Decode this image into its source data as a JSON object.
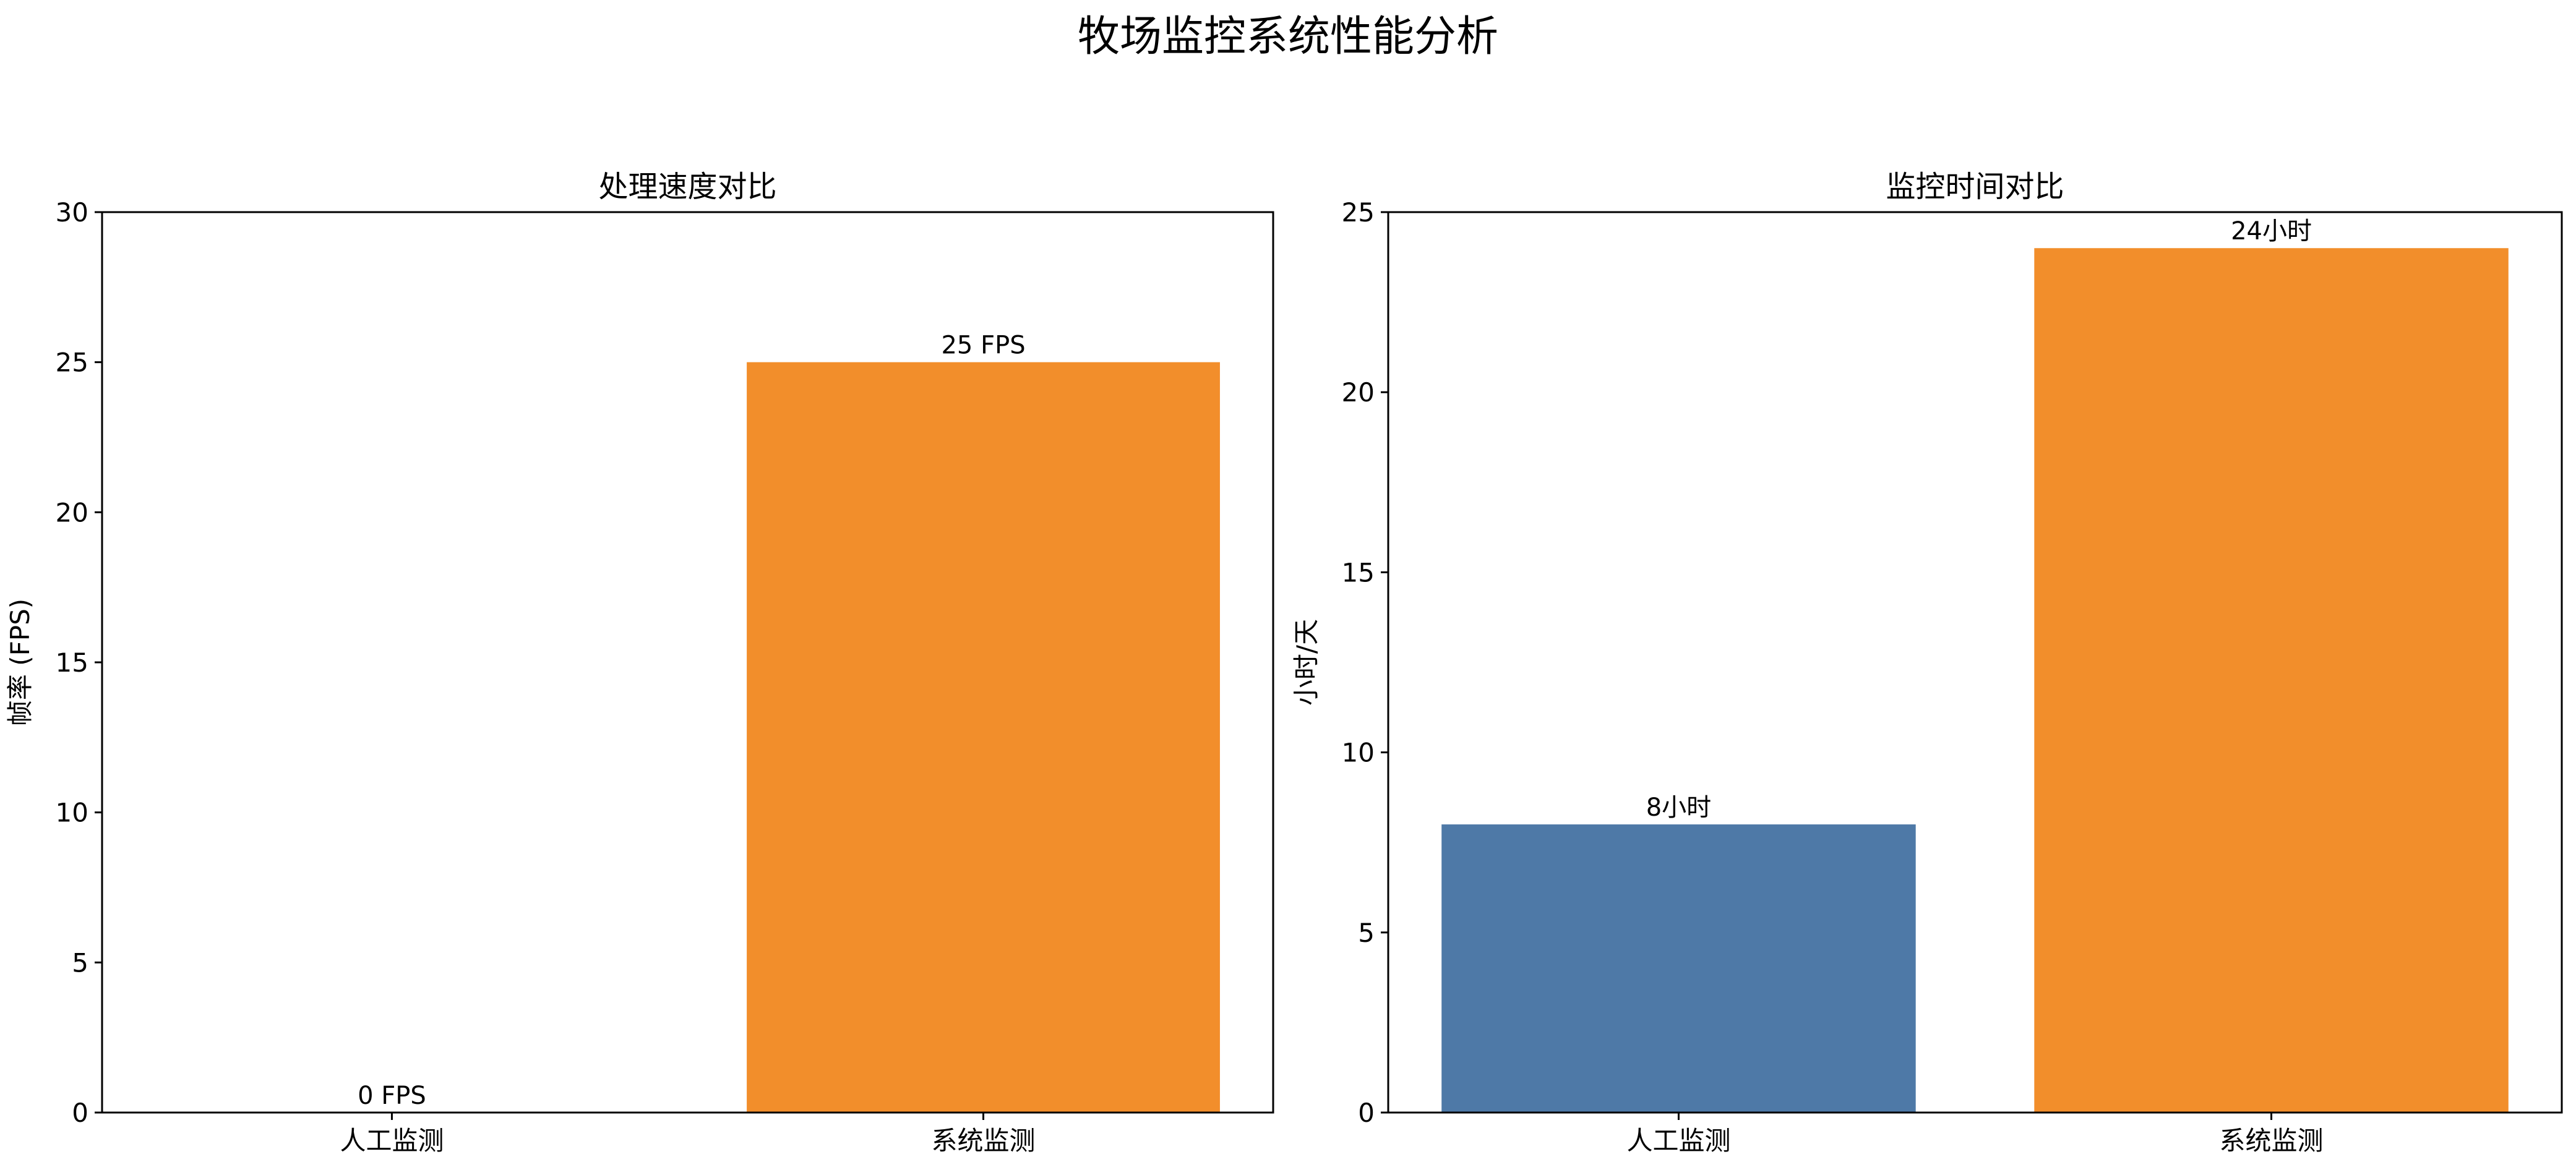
{
  "figure": {
    "title": "牧场监控系统性能分析"
  },
  "colors": {
    "manual": "#4e79a7",
    "system": "#f28e2b"
  },
  "chart_data": [
    {
      "type": "bar",
      "title": "处理速度对比",
      "xlabel": "",
      "ylabel": "帧率 (FPS)",
      "categories": [
        "人工监测",
        "系统监测"
      ],
      "values": [
        0,
        25
      ],
      "value_labels": [
        "0 FPS",
        "25 FPS"
      ],
      "ylim": [
        0,
        30
      ],
      "yticks": [
        0,
        5,
        10,
        15,
        20,
        25,
        30
      ],
      "grid": false,
      "legend": "none"
    },
    {
      "type": "bar",
      "title": "监控时间对比",
      "xlabel": "",
      "ylabel": "小时/天",
      "categories": [
        "人工监测",
        "系统监测"
      ],
      "values": [
        8,
        24
      ],
      "value_labels": [
        "8小时",
        "24小时"
      ],
      "ylim": [
        0,
        25
      ],
      "yticks": [
        0,
        5,
        10,
        15,
        20,
        25
      ],
      "grid": false,
      "legend": "none"
    }
  ]
}
